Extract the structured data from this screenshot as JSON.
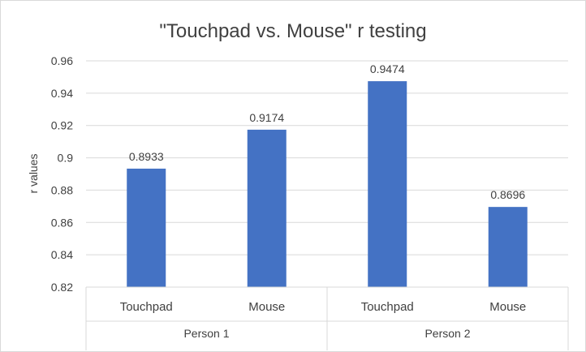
{
  "chart_data": {
    "type": "bar",
    "title": "\"Touchpad vs. Mouse\" r testing",
    "xlabel": "",
    "ylabel": "r values",
    "ylim": [
      0.82,
      0.96
    ],
    "yticks": [
      "0.82",
      "0.84",
      "0.86",
      "0.88",
      "0.9",
      "0.92",
      "0.94",
      "0.96"
    ],
    "groups": [
      {
        "name": "Person 1",
        "categories": [
          "Touchpad",
          "Mouse"
        ],
        "values": [
          0.8933,
          0.9174
        ],
        "labels": [
          "0.8933",
          "0.9174"
        ]
      },
      {
        "name": "Person 2",
        "categories": [
          "Touchpad",
          "Mouse"
        ],
        "values": [
          0.9474,
          0.8696
        ],
        "labels": [
          "0.9474",
          "0.8696"
        ]
      }
    ],
    "grid": true,
    "legend": "none",
    "bar_color": "#4472C4"
  }
}
